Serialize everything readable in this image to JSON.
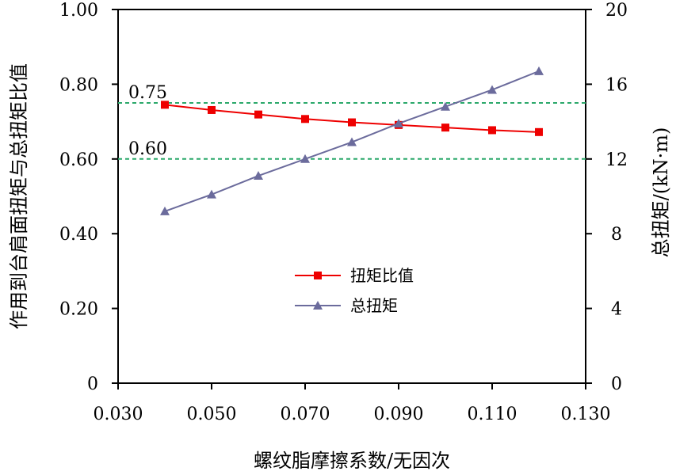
{
  "chart_data": {
    "type": "line",
    "x": [
      0.04,
      0.05,
      0.06,
      0.07,
      0.08,
      0.09,
      0.1,
      0.11,
      0.12
    ],
    "xlabel": "螺纹脂摩擦系数/无因次",
    "xlim": [
      0.03,
      0.13
    ],
    "xticks": [
      0.03,
      0.05,
      0.07,
      0.09,
      0.11,
      0.13
    ],
    "xtick_labels": [
      "0.030",
      "0.050",
      "0.070",
      "0.090",
      "0.110",
      "0.130"
    ],
    "ylabel_left": "作用到台肩面扭矩与总扭矩比值",
    "ylim_left": [
      0,
      1
    ],
    "yticks_left": [
      0,
      0.2,
      0.4,
      0.6,
      0.8,
      1.0
    ],
    "ytick_labels_left": [
      "0",
      "0.20",
      "0.40",
      "0.60",
      "0.80",
      "1.00"
    ],
    "ylabel_right": "总扭矩/(kN·m)",
    "ylim_right": [
      0,
      20
    ],
    "yticks_right": [
      0,
      4,
      8,
      12,
      16,
      20
    ],
    "ytick_labels_right": [
      "0",
      "4",
      "8",
      "12",
      "16",
      "20"
    ],
    "series": [
      {
        "name": "扭矩比值",
        "axis": "left",
        "marker": "square",
        "color": "#ee0000",
        "values": [
          0.745,
          0.731,
          0.719,
          0.707,
          0.698,
          0.691,
          0.684,
          0.677,
          0.672
        ]
      },
      {
        "name": "总扭矩",
        "axis": "right",
        "marker": "triangle",
        "color": "#6b6b9c",
        "values": [
          9.2,
          10.1,
          11.1,
          12.0,
          12.9,
          13.9,
          14.8,
          15.7,
          16.7
        ]
      }
    ],
    "reference_lines": [
      {
        "value": 0.75,
        "label": "0.75",
        "color": "#2aa86a"
      },
      {
        "value": 0.6,
        "label": "0.60",
        "color": "#2aa86a"
      }
    ],
    "legend_position": "center"
  }
}
